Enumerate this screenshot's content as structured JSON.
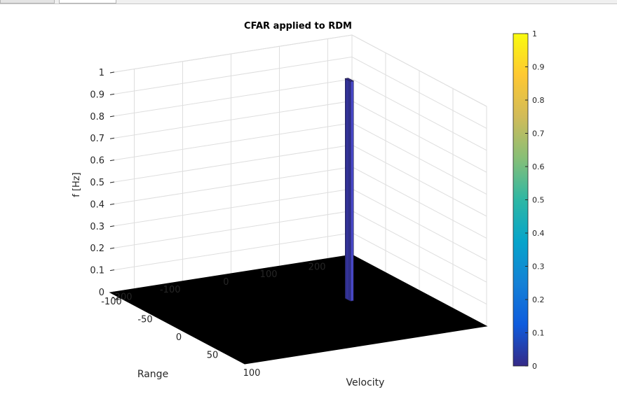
{
  "tabs": [
    {
      "label": ""
    },
    {
      "label": ""
    }
  ],
  "chart_data": {
    "type": "surface-3d",
    "title": "CFAR applied to RDM",
    "xlabel": "Velocity",
    "ylabel": "Range",
    "zlabel": "f [Hz]",
    "xlim": [
      -100,
      100
    ],
    "ylim": [
      -250,
      250
    ],
    "zlim": [
      0,
      1
    ],
    "xticks": [
      -100,
      -50,
      0,
      50,
      100
    ],
    "yticks": [
      -200,
      -100,
      0,
      100,
      200
    ],
    "zticks": [
      0,
      0.1,
      0.2,
      0.3,
      0.4,
      0.5,
      0.6,
      0.7,
      0.8,
      0.9,
      1
    ],
    "grid": true,
    "colormap": "parula",
    "surface": {
      "base_value": 0,
      "base_color": "#000000",
      "edge_color": "#000000",
      "detection": {
        "velocity_range": [
          -8,
          0
        ],
        "range_range": [
          108,
          114
        ],
        "value": 1
      }
    },
    "colorbar": {
      "location": "right",
      "limits": [
        0,
        1
      ],
      "ticks": [
        0,
        0.1,
        0.2,
        0.3,
        0.4,
        0.5,
        0.6,
        0.7,
        0.8,
        0.9,
        1
      ],
      "colors": [
        "#352a87",
        "#0f5cdd",
        "#1481d6",
        "#06a4ca",
        "#2eb7a4",
        "#87bf77",
        "#d1bb59",
        "#fec832",
        "#f9fb0e"
      ]
    }
  }
}
